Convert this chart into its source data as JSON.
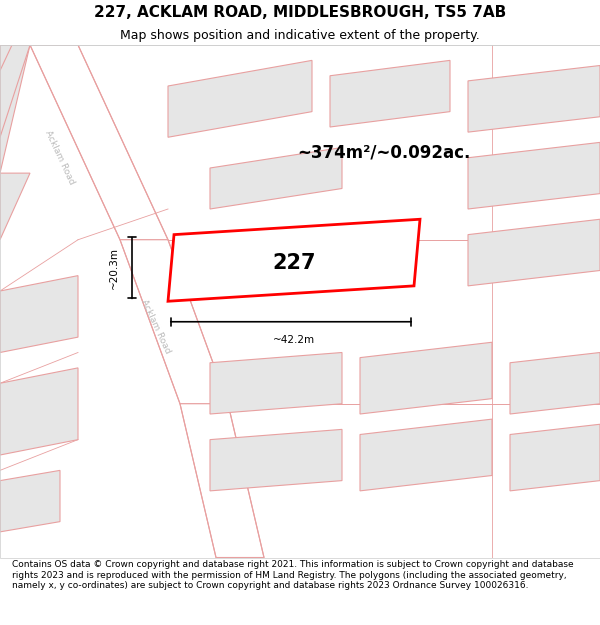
{
  "title": "227, ACKLAM ROAD, MIDDLESBROUGH, TS5 7AB",
  "subtitle": "Map shows position and indicative extent of the property.",
  "footer": "Contains OS data © Crown copyright and database right 2021. This information is subject to Crown copyright and database rights 2023 and is reproduced with the permission of HM Land Registry. The polygons (including the associated geometry, namely x, y co-ordinates) are subject to Crown copyright and database rights 2023 Ordnance Survey 100026316.",
  "area_text": "~374m²/~0.092ac.",
  "label_227": "227",
  "dim_width": "~42.2m",
  "dim_height": "~20.3m",
  "road_label1": "Acklam Road",
  "road_label2": "Acklam Road",
  "map_bg": "#f2f2f2",
  "building_fill": "#e6e6e6",
  "building_stroke": "#e8a0a0",
  "road_fill": "#ffffff",
  "road_stroke": "#e8a0a0",
  "highlight_fill": "#ffffff",
  "highlight_stroke": "#ff0000",
  "title_fontsize": 11,
  "subtitle_fontsize": 9,
  "footer_fontsize": 6.5
}
